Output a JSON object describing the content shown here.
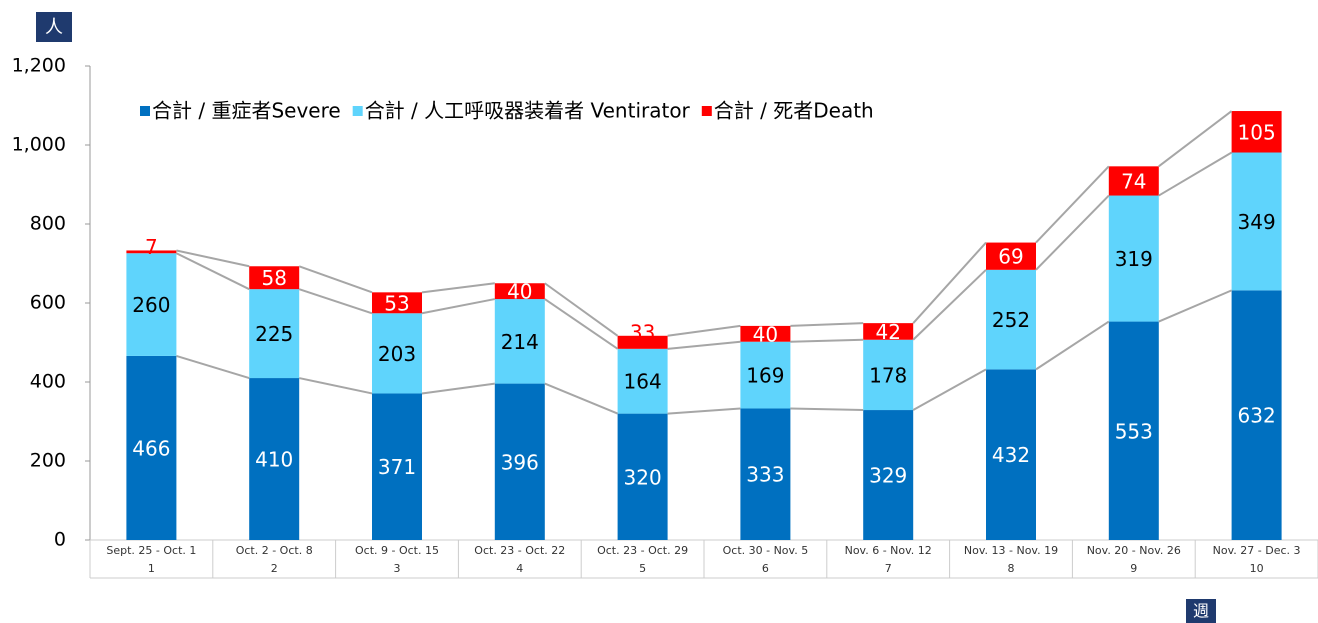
{
  "chart_data": {
    "type": "stacked_bar",
    "y_label": "人",
    "x_label": "週",
    "categories": [
      "Sept. 25 - Oct. 1",
      "Oct. 2 - Oct. 8",
      "Oct. 9 - Oct. 15",
      "Oct. 23 - Oct. 22",
      "Oct. 23 - Oct. 29",
      "Oct. 30 - Nov. 5",
      "Nov. 6 - Nov. 12",
      "Nov. 13 - Nov. 19",
      "Nov. 20 - Nov. 26",
      "Nov. 27 - Dec. 3"
    ],
    "sub_categories": [
      "1",
      "2",
      "3",
      "4",
      "5",
      "6",
      "7",
      "8",
      "9",
      "10"
    ],
    "series": [
      {
        "name": "合計 / 重症者Severe",
        "color": "#0070c0",
        "values": [
          466,
          410,
          371,
          396,
          320,
          333,
          329,
          432,
          553,
          632
        ]
      },
      {
        "name": "合計 / 人工呼吸器装着者 Ventirator",
        "color": "#5fd4fc",
        "values": [
          260,
          225,
          203,
          214,
          164,
          169,
          178,
          252,
          319,
          349
        ]
      },
      {
        "name": "合計 / 死者Death",
        "color": "#ff0000",
        "values": [
          7,
          58,
          53,
          40,
          33,
          40,
          42,
          69,
          74,
          105
        ]
      }
    ],
    "ylim": [
      0,
      1200
    ],
    "yticks": [
      0,
      200,
      400,
      600,
      800,
      {
        "value": 1000,
        "label": "1,000"
      },
      {
        "value": 1200,
        "label": "1,200"
      }
    ],
    "legend": "top-left"
  }
}
